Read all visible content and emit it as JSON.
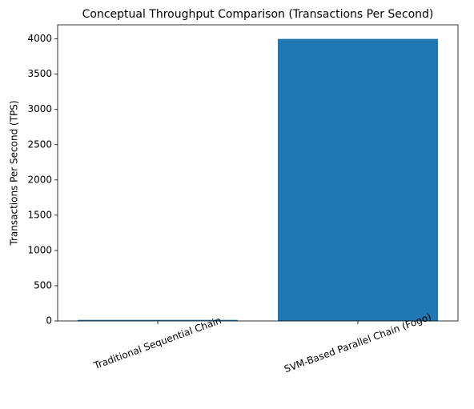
{
  "chart_data": {
    "type": "bar",
    "title": "Conceptual Throughput Comparison (Transactions Per Second)",
    "y_label": "Transactions Per Second (TPS)",
    "categories": [
      "Traditional Sequential Chain",
      "SVM-Based Parallel Chain (Fogo)"
    ],
    "values": [
      15,
      4000
    ],
    "color": "#1f77b4",
    "ylim": [
      0,
      4200
    ],
    "yticks": [
      0,
      500,
      1000,
      1500,
      2000,
      2500,
      3000,
      3500,
      4000
    ],
    "grid": false
  }
}
